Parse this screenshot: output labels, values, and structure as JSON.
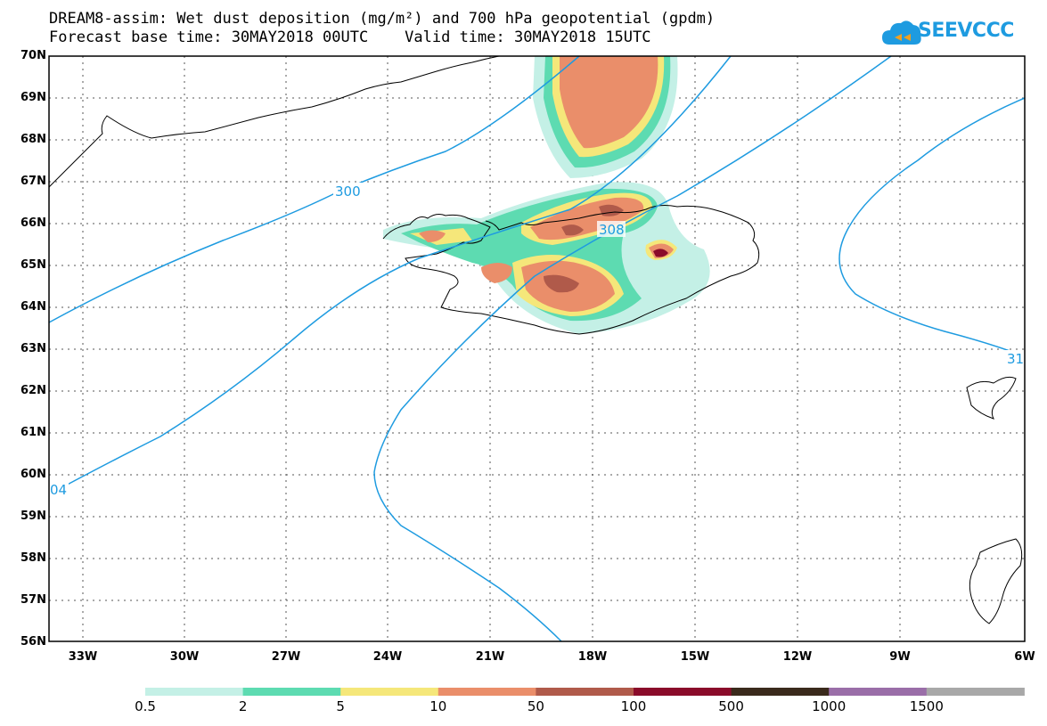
{
  "title": {
    "line1": "DREAM8-assim: Wet dust deposition (mg/m²) and 700 hPa geopotential (gpdm)",
    "line2": "Forecast base time: 30MAY2018 00UTC    Valid time: 30MAY2018 15UTC"
  },
  "logo": {
    "text": "SEEVCCC",
    "icon": "cloud-icon",
    "color": "#1e9be0"
  },
  "map": {
    "lat_labels": [
      "70N",
      "69N",
      "68N",
      "67N",
      "66N",
      "65N",
      "64N",
      "63N",
      "62N",
      "61N",
      "60N",
      "59N",
      "58N",
      "57N",
      "56N"
    ],
    "lon_labels": [
      "33W",
      "30W",
      "27W",
      "24W",
      "21W",
      "18W",
      "15W",
      "12W",
      "9W",
      "6W"
    ],
    "contour_labels": [
      {
        "text": "300",
        "id": "c300"
      },
      {
        "text": "308",
        "id": "c308"
      },
      {
        "text": "04",
        "id": "c304"
      },
      {
        "text": "31",
        "id": "c312"
      }
    ],
    "contour_color": "#1e9be0"
  },
  "colorbar": {
    "labels": [
      "0.5",
      "2",
      "5",
      "10",
      "50",
      "100",
      "500",
      "1000",
      "1500"
    ],
    "colors": [
      "#c4f0e6",
      "#5ddbb1",
      "#f5e77a",
      "#ea8e6a",
      "#b05a4a",
      "#8a0b2a",
      "#3a2a1c",
      "#9a6ea8",
      "#a8a8a8"
    ]
  }
}
